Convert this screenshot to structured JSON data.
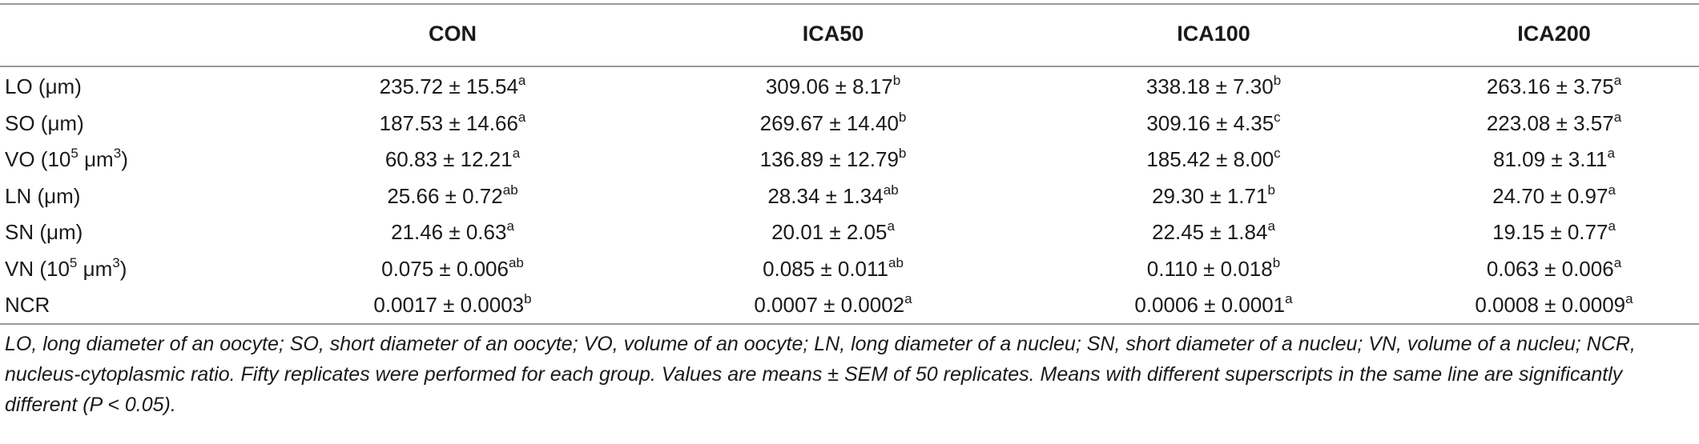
{
  "table": {
    "headers": [
      "CON",
      "ICA50",
      "ICA100",
      "ICA200"
    ],
    "rows": [
      {
        "label": "LO (μm)",
        "label_pre": "LO (μm)",
        "label_sup": "",
        "label_post": "",
        "values": [
          {
            "v": "235.72 ± 15.54",
            "s": "a"
          },
          {
            "v": "309.06 ± 8.17",
            "s": "b"
          },
          {
            "v": "338.18 ± 7.30",
            "s": "b"
          },
          {
            "v": "263.16 ± 3.75",
            "s": "a"
          }
        ]
      },
      {
        "label": "SO (μm)",
        "label_pre": "SO (μm)",
        "label_sup": "",
        "label_post": "",
        "values": [
          {
            "v": "187.53 ± 14.66",
            "s": "a"
          },
          {
            "v": "269.67 ± 14.40",
            "s": "b"
          },
          {
            "v": "309.16 ± 4.35",
            "s": "c"
          },
          {
            "v": "223.08 ± 3.57",
            "s": "a"
          }
        ]
      },
      {
        "label": "VO (10^5 μm^3)",
        "label_pre": "VO (10",
        "label_sup": "5",
        "label_post": " μm",
        "label_sup2": "3",
        "label_end": ")",
        "values": [
          {
            "v": "60.83 ± 12.21",
            "s": "a"
          },
          {
            "v": "136.89 ± 12.79",
            "s": "b"
          },
          {
            "v": "185.42 ± 8.00",
            "s": "c"
          },
          {
            "v": "81.09 ± 3.11",
            "s": "a"
          }
        ]
      },
      {
        "label": "LN (μm)",
        "label_pre": "LN (μm)",
        "label_sup": "",
        "label_post": "",
        "values": [
          {
            "v": "25.66 ± 0.72",
            "s": "ab"
          },
          {
            "v": "28.34 ± 1.34",
            "s": "ab"
          },
          {
            "v": "29.30 ± 1.71",
            "s": "b"
          },
          {
            "v": "24.70 ± 0.97",
            "s": "a"
          }
        ]
      },
      {
        "label": "SN (μm)",
        "label_pre": "SN (μm)",
        "label_sup": "",
        "label_post": "",
        "values": [
          {
            "v": "21.46 ± 0.63",
            "s": "a"
          },
          {
            "v": "20.01 ± 2.05",
            "s": "a"
          },
          {
            "v": "22.45 ± 1.84",
            "s": "a"
          },
          {
            "v": "19.15 ± 0.77",
            "s": "a"
          }
        ]
      },
      {
        "label": "VN (10^5 μm^3)",
        "label_pre": "VN (10",
        "label_sup": "5",
        "label_post": " μm",
        "label_sup2": "3",
        "label_end": ")",
        "values": [
          {
            "v": "0.075 ± 0.006",
            "s": "ab"
          },
          {
            "v": "0.085 ± 0.011",
            "s": "ab"
          },
          {
            "v": "0.110 ± 0.018",
            "s": "b"
          },
          {
            "v": "0.063 ± 0.006",
            "s": "a"
          }
        ]
      },
      {
        "label": "NCR",
        "label_pre": "NCR",
        "label_sup": "",
        "label_post": "",
        "values": [
          {
            "v": "0.0017 ± 0.0003",
            "s": "b"
          },
          {
            "v": "0.0007 ± 0.0002",
            "s": "a"
          },
          {
            "v": "0.0006 ± 0.0001",
            "s": "a"
          },
          {
            "v": "0.0008 ± 0.0009",
            "s": "a"
          }
        ]
      }
    ],
    "footnote": "LO, long diameter of an oocyte; SO, short diameter of an oocyte; VO, volume of an oocyte; LN, long diameter of a nucleu; SN, short diameter of a nucleu; VN, volume of a nucleu; NCR, nucleus-cytoplasmic ratio. Fifty replicates were performed for each group. Values are means ± SEM of 50 replicates. Means with different superscripts in the same line are significantly different (P < 0.05)."
  }
}
